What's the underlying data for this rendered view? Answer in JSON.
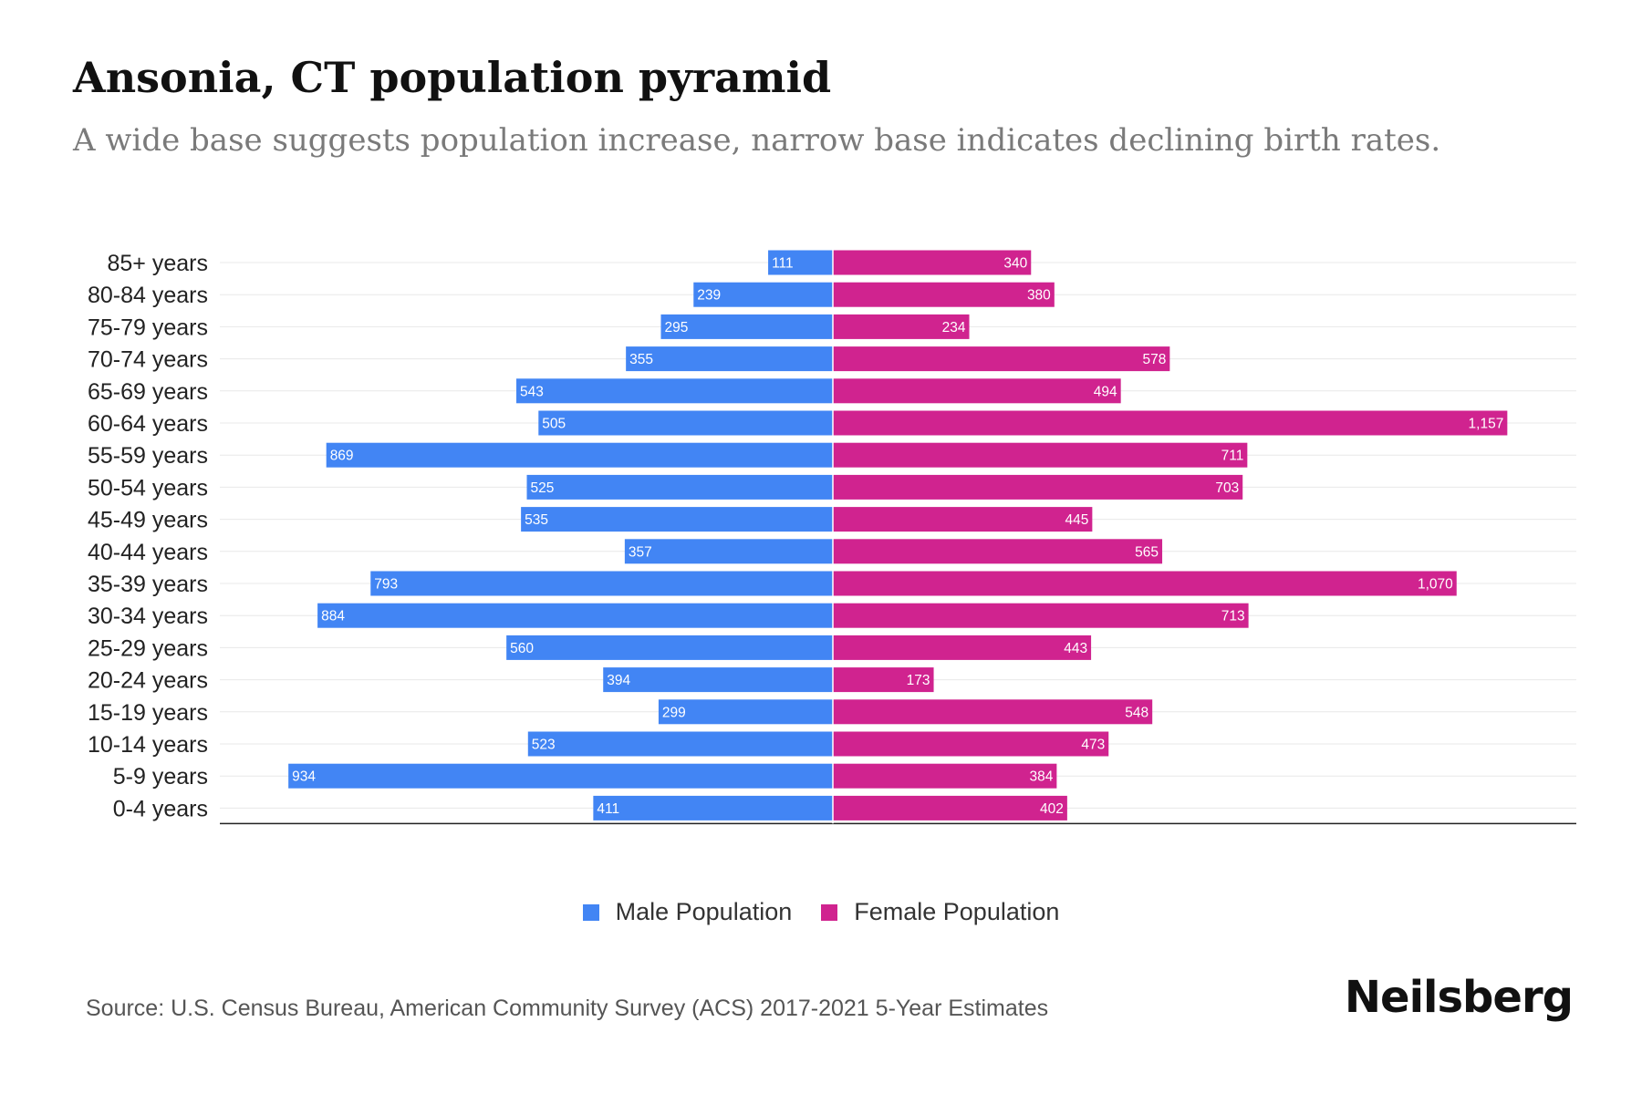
{
  "header": {
    "title": "Ansonia, CT population pyramid",
    "subtitle": "A wide base suggests population increase, narrow base indicates declining birth rates."
  },
  "chart_data": {
    "type": "bar",
    "orientation": "horizontal-pyramid",
    "categories": [
      "85+ years",
      "80-84 years",
      "75-79 years",
      "70-74 years",
      "65-69 years",
      "60-64 years",
      "55-59 years",
      "50-54 years",
      "45-49 years",
      "40-44 years",
      "35-39 years",
      "30-34 years",
      "25-29 years",
      "20-24 years",
      "15-19 years",
      "10-14 years",
      "5-9 years",
      "0-4 years"
    ],
    "series": [
      {
        "name": "Male Population",
        "color": "#4285f4",
        "values": [
          111,
          239,
          295,
          355,
          543,
          505,
          869,
          525,
          535,
          357,
          793,
          884,
          560,
          394,
          299,
          523,
          934,
          411
        ],
        "labels": [
          "111",
          "239",
          "295",
          "355",
          "543",
          "505",
          "869",
          "525",
          "535",
          "357",
          "793",
          "884",
          "560",
          "394",
          "299",
          "523",
          "934",
          "411"
        ]
      },
      {
        "name": "Female Population",
        "color": "#d0238f",
        "values": [
          340,
          380,
          234,
          578,
          494,
          1157,
          711,
          703,
          445,
          565,
          1070,
          713,
          443,
          173,
          548,
          473,
          384,
          402
        ],
        "labels": [
          "340",
          "380",
          "234",
          "578",
          "494",
          "1,157",
          "711",
          "703",
          "445",
          "565",
          "1,070",
          "713",
          "443",
          "173",
          "548",
          "473",
          "384",
          "402"
        ]
      }
    ],
    "title": "Ansonia, CT population pyramid",
    "xlabel": "",
    "ylabel": "",
    "xlim": [
      -1050,
      1277
    ],
    "grid": true,
    "legend_position": "bottom-center"
  },
  "legend": {
    "male_label": "Male Population",
    "female_label": "Female Population",
    "male_color": "#4285f4",
    "female_color": "#d0238f"
  },
  "footer": {
    "source": "Source: U.S. Census Bureau, American Community Survey (ACS) 2017-2021 5-Year Estimates",
    "brand": "Neilsberg"
  }
}
